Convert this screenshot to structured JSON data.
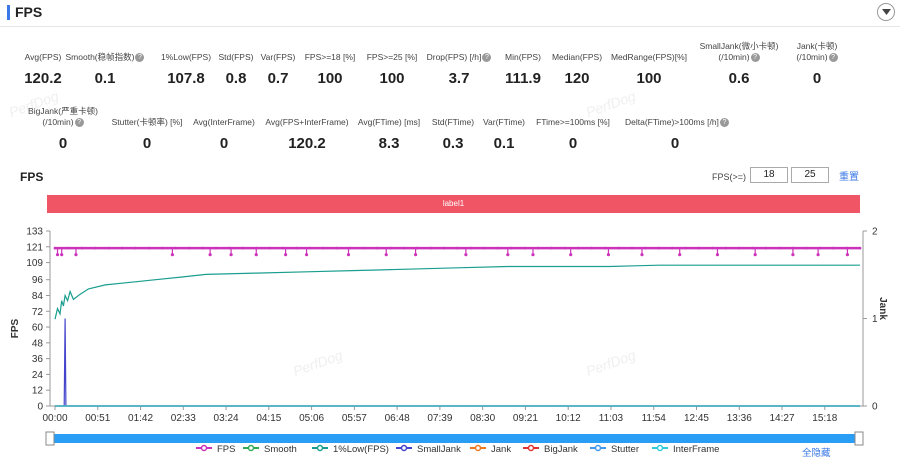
{
  "header": {
    "title": "FPS"
  },
  "stats_row1": [
    {
      "label": "Avg(FPS)",
      "value": "120.2",
      "help": false
    },
    {
      "label": "Smooth(稳帧指数)",
      "value": "0.1",
      "help": true
    },
    {
      "label": "1%Low(FPS)",
      "value": "107.8",
      "help": false
    },
    {
      "label": "Std(FPS)",
      "value": "0.8",
      "help": false
    },
    {
      "label": "Var(FPS)",
      "value": "0.7",
      "help": false
    },
    {
      "label": "FPS>=18 [%]",
      "value": "100",
      "help": false
    },
    {
      "label": "FPS>=25 [%]",
      "value": "100",
      "help": false
    },
    {
      "label": "Drop(FPS) [/h]",
      "value": "3.7",
      "help": true
    },
    {
      "label": "Min(FPS)",
      "value": "111.9",
      "help": false
    },
    {
      "label": "Median(FPS)",
      "value": "120",
      "help": false
    },
    {
      "label": "MedRange(FPS)[%]",
      "value": "100",
      "help": false
    },
    {
      "label": "SmallJank(微小卡顿)",
      "label2": "(/10min)",
      "value": "0.6",
      "help": true
    },
    {
      "label": "Jank(卡顿)",
      "label2": "(/10min)",
      "value": "0",
      "help": true
    }
  ],
  "stats_row2": [
    {
      "label": "BigJank(严重卡顿)",
      "label2": "(/10min)",
      "value": "0",
      "help": true
    },
    {
      "label": "Stutter(卡顿率) [%]",
      "value": "0",
      "help": false
    },
    {
      "label": "Avg(InterFrame)",
      "value": "0",
      "help": false
    },
    {
      "label": "Avg(FPS+InterFrame)",
      "value": "120.2",
      "help": false
    },
    {
      "label": "Avg(FTime) [ms]",
      "value": "8.3",
      "help": false
    },
    {
      "label": "Std(FTime)",
      "value": "0.3",
      "help": false
    },
    {
      "label": "Var(FTime)",
      "value": "0.1",
      "help": false
    },
    {
      "label": "FTime>=100ms [%]",
      "value": "0",
      "help": false
    },
    {
      "label": "Delta(FTime)>100ms [/h]",
      "value": "0",
      "help": true
    }
  ],
  "section": {
    "title": "FPS",
    "threshold_label": "FPS(>=)",
    "threshold1": "18",
    "threshold2": "25",
    "reset_label": "重置",
    "label_bar": "label1"
  },
  "watermark": "PerfDog",
  "chart_data": {
    "type": "line",
    "xlabel": "",
    "ylabel": "FPS",
    "ylabel_right": "Jank",
    "ylim": [
      0,
      133
    ],
    "ylim_right": [
      0,
      2
    ],
    "y_ticks": [
      "0",
      "12",
      "24",
      "36",
      "48",
      "60",
      "72",
      "84",
      "96",
      "109",
      "121",
      "133"
    ],
    "y_tick_values": [
      0,
      12,
      24,
      36,
      48,
      60,
      72,
      84,
      96,
      109,
      121,
      133
    ],
    "y2_ticks": [
      "0",
      "1",
      "2"
    ],
    "y2_tick_values": [
      0,
      1,
      2
    ],
    "x_ticks": [
      "00:00",
      "00:51",
      "01:42",
      "02:33",
      "03:24",
      "04:15",
      "05:06",
      "05:57",
      "06:48",
      "07:39",
      "08:30",
      "09:21",
      "10:12",
      "11:03",
      "11:54",
      "12:45",
      "13:36",
      "14:27",
      "15:18"
    ],
    "x_range_s": [
      0,
      960
    ],
    "series": [
      {
        "name": "FPS",
        "color": "#cc33bb",
        "x_s": [
          0,
          30,
          100,
          150,
          200,
          250,
          300,
          350,
          400,
          450,
          500,
          550,
          600,
          650,
          700,
          750,
          800,
          850,
          900,
          960
        ],
        "values": [
          120,
          120,
          120,
          120,
          120,
          120,
          120,
          120,
          120,
          120,
          120,
          120,
          120,
          120,
          120,
          120,
          120,
          120,
          120,
          120
        ],
        "dips_s": [
          3,
          8,
          25,
          140,
          185,
          210,
          240,
          275,
          300,
          350,
          395,
          430,
          490,
          540,
          570,
          615,
          660,
          700,
          745,
          790,
          835,
          880,
          910,
          945
        ],
        "dip_value": 115
      },
      {
        "name": "Smooth",
        "color": "#33aa55",
        "x_s": [
          0,
          960
        ],
        "values": [
          0,
          0
        ]
      },
      {
        "name": "1%Low(FPS)",
        "color": "#1a9e8f",
        "x_s": [
          0,
          3,
          6,
          8,
          10,
          12,
          15,
          18,
          22,
          30,
          40,
          60,
          90,
          120,
          150,
          180,
          240,
          300,
          360,
          420,
          480,
          540,
          600,
          660,
          720,
          780,
          840,
          900,
          960
        ],
        "values": [
          66,
          74,
          70,
          80,
          76,
          84,
          80,
          87,
          81,
          85,
          89,
          92,
          94,
          96,
          98,
          100,
          101,
          102,
          103,
          104,
          105,
          106,
          106,
          106,
          107,
          107,
          107,
          107,
          107
        ]
      },
      {
        "name": "SmallJank",
        "color": "#4444cc",
        "x_s": [
          0,
          11,
          12,
          13,
          960
        ],
        "values_right": [
          0,
          0,
          1,
          0,
          0
        ]
      },
      {
        "name": "Jank",
        "color": "#ee7722",
        "x_s": [
          0,
          960
        ],
        "values_right": [
          0,
          0
        ]
      },
      {
        "name": "BigJank",
        "color": "#dd3333",
        "x_s": [
          0,
          960
        ],
        "values_right": [
          0,
          0
        ]
      },
      {
        "name": "Stutter",
        "color": "#4499ee",
        "x_s": [
          0,
          960
        ],
        "values": [
          0,
          0
        ]
      },
      {
        "name": "InterFrame",
        "color": "#33ccdd",
        "x_s": [
          0,
          960
        ],
        "values": [
          0,
          0
        ]
      }
    ],
    "hide_all_label": "全隐藏"
  }
}
